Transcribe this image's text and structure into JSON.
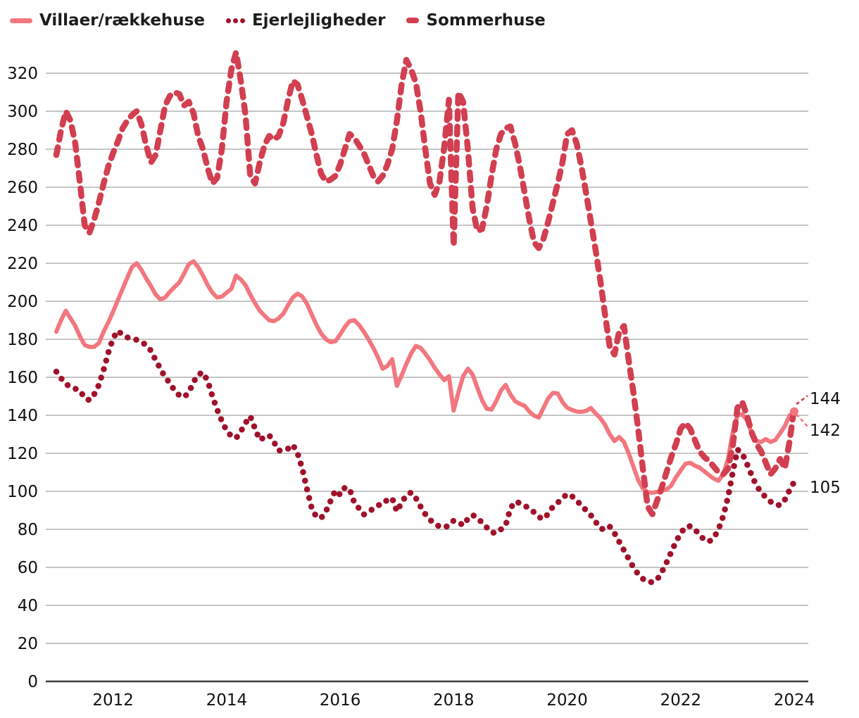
{
  "legend": {
    "items": [
      {
        "label": "Villaer/rækkehuse",
        "color": "#F2777E",
        "style": "solid"
      },
      {
        "label": "Ejerlejligheder",
        "color": "#A0122B",
        "style": "dotted"
      },
      {
        "label": "Sommerhuse",
        "color": "#D23F50",
        "style": "dashed"
      }
    ]
  },
  "end_labels": [
    {
      "text": "144",
      "series": "Sommerhuse"
    },
    {
      "text": "142",
      "series": "Villaer/rækkehuse"
    },
    {
      "text": "105",
      "series": "Ejerlejligheder"
    }
  ],
  "chart_data": {
    "type": "line",
    "title": "",
    "xlabel": "",
    "ylabel": "",
    "x_start_year": 2011,
    "x_end": "2024-01",
    "points_per_year": 12,
    "x_tick_labels": [
      "2012",
      "2014",
      "2016",
      "2018",
      "2020",
      "2022",
      "2024"
    ],
    "y_ticks": [
      0,
      20,
      40,
      60,
      80,
      100,
      120,
      140,
      160,
      180,
      200,
      220,
      240,
      260,
      280,
      300,
      320
    ],
    "ylim": [
      0,
      332
    ],
    "grid": "horizontal",
    "legend_position": "top-left",
    "background": "#ffffff",
    "gridline_color": "#bdbdbd",
    "axis_color": "#3c3c3c",
    "series": [
      {
        "name": "Villaer/rækkehuse",
        "color": "#F2777E",
        "dash": "solid",
        "end_value": 142,
        "values": [
          184,
          190,
          195,
          191,
          187,
          181.5,
          177,
          176,
          176,
          178,
          184,
          189,
          194.5,
          200.5,
          206.5,
          212.5,
          218,
          220,
          216.5,
          212,
          208,
          203.5,
          201,
          202,
          205,
          207.5,
          210,
          214.5,
          219.5,
          221,
          218,
          213.5,
          208.5,
          204.5,
          202,
          202.5,
          204.5,
          206.5,
          213.5,
          211.5,
          208.5,
          203.5,
          199,
          195,
          192.5,
          190,
          189.5,
          191,
          193.5,
          198,
          202,
          204,
          202.5,
          198.5,
          193,
          187.5,
          183,
          180,
          178.5,
          179,
          182.5,
          186.5,
          189.5,
          190,
          187.5,
          184,
          180,
          175.5,
          170.5,
          164.5,
          166,
          169.5,
          155.5,
          161,
          167,
          172.5,
          176.5,
          175.5,
          172.5,
          169,
          165,
          161.5,
          158.5,
          160.5,
          142.5,
          152,
          160.5,
          164.5,
          161.5,
          154.5,
          148,
          143.5,
          143,
          147.5,
          153,
          156,
          151,
          147.5,
          146,
          145,
          142,
          139.8,
          138.8,
          144,
          149,
          151.8,
          151.5,
          147,
          144,
          142.8,
          142,
          141.8,
          142.3,
          143.8,
          141,
          138.5,
          135,
          130,
          126.5,
          128.5,
          126,
          120,
          113,
          106,
          101.5,
          99.5,
          99.3,
          99.7,
          100.3,
          101,
          103,
          107.5,
          111,
          114.5,
          115,
          113.5,
          112.5,
          110.5,
          108.5,
          106.7,
          105.6,
          109,
          117,
          131,
          140,
          140.5,
          137.5,
          131,
          126.5,
          126,
          127.5,
          126,
          127,
          130.5,
          134.3,
          139.8,
          142
        ]
      },
      {
        "name": "Ejerlejligheder",
        "color": "#A0122B",
        "dash": "dotted",
        "end_value": 105,
        "values": [
          163,
          159.5,
          156.5,
          155,
          154,
          153,
          149,
          148,
          151,
          156,
          164,
          173,
          180.5,
          184.5,
          182.3,
          181,
          180.3,
          179.7,
          178.5,
          177,
          174,
          169,
          164.5,
          160,
          157,
          153,
          150.5,
          149.5,
          152,
          157.5,
          161.5,
          162.6,
          158,
          150,
          143,
          137,
          132,
          129,
          128,
          131.5,
          136,
          139.5,
          133,
          127,
          128.5,
          129.5,
          126,
          121.5,
          121.5,
          122.5,
          124.5,
          120,
          112,
          101,
          91,
          86.5,
          86,
          89.5,
          95,
          100.5,
          98.2,
          102,
          101.2,
          94,
          91,
          87.8,
          89,
          91,
          92.7,
          93.1,
          95.7,
          96.4,
          89.4,
          94,
          98,
          99.4,
          96.5,
          92,
          88,
          85,
          83,
          81.5,
          81,
          82,
          84.6,
          83.9,
          82.1,
          85.5,
          87.6,
          86,
          83.5,
          81,
          78.4,
          78,
          80,
          82.1,
          91,
          94.6,
          93.8,
          92.5,
          91,
          89,
          86.5,
          85.4,
          88.3,
          92,
          94,
          96.4,
          98.6,
          97.5,
          95,
          92.7,
          90,
          87.5,
          84,
          80.5,
          79.8,
          81.5,
          78,
          73.5,
          69,
          64.5,
          60,
          56.5,
          54,
          52.4,
          52.2,
          53.5,
          57.5,
          62.5,
          68,
          73.5,
          78,
          81.3,
          81.7,
          80,
          77,
          74.5,
          73.6,
          75.5,
          80,
          87,
          97,
          110,
          122,
          120,
          114.5,
          108.5,
          103,
          99.5,
          96.8,
          94.6,
          93,
          92.7,
          95.5,
          100.5,
          105
        ]
      },
      {
        "name": "Sommerhuse",
        "color": "#D23F50",
        "dash": "dashed",
        "end_value": 144,
        "values": [
          277,
          290,
          300,
          295,
          283,
          262,
          240,
          236,
          243,
          252,
          262,
          271,
          278,
          284,
          291,
          295,
          298,
          300,
          293,
          282,
          273,
          277,
          290,
          303,
          308,
          310,
          309,
          303,
          305,
          299,
          287,
          280,
          270,
          262,
          265,
          280,
          305,
          322,
          331,
          316,
          298,
          266,
          262,
          273,
          282,
          287,
          285,
          287,
          294,
          306,
          316,
          314,
          306,
          297,
          288,
          277,
          267,
          263,
          264,
          266,
          272,
          280,
          288,
          286,
          282,
          278,
          272,
          266,
          263,
          266,
          272,
          280,
          295,
          314,
          327,
          322,
          315,
          300,
          280,
          262,
          256,
          263,
          281,
          306,
          229,
          310,
          305,
          280,
          249,
          237,
          238,
          250,
          266,
          280,
          288,
          291,
          292,
          283,
          271,
          257,
          243,
          231,
          228,
          233,
          242,
          252,
          262,
          273,
          288,
          290,
          283,
          271,
          257,
          242,
          227,
          211,
          193,
          176,
          172,
          184,
          187,
          169,
          152,
          133,
          112,
          92,
          88,
          95,
          102,
          110,
          118,
          125,
          133,
          136,
          133,
          127,
          121,
          118,
          116,
          113,
          110,
          109,
          112,
          124,
          144,
          147,
          140,
          131,
          125,
          121,
          115,
          109,
          112,
          117,
          112,
          126,
          144
        ]
      }
    ]
  }
}
